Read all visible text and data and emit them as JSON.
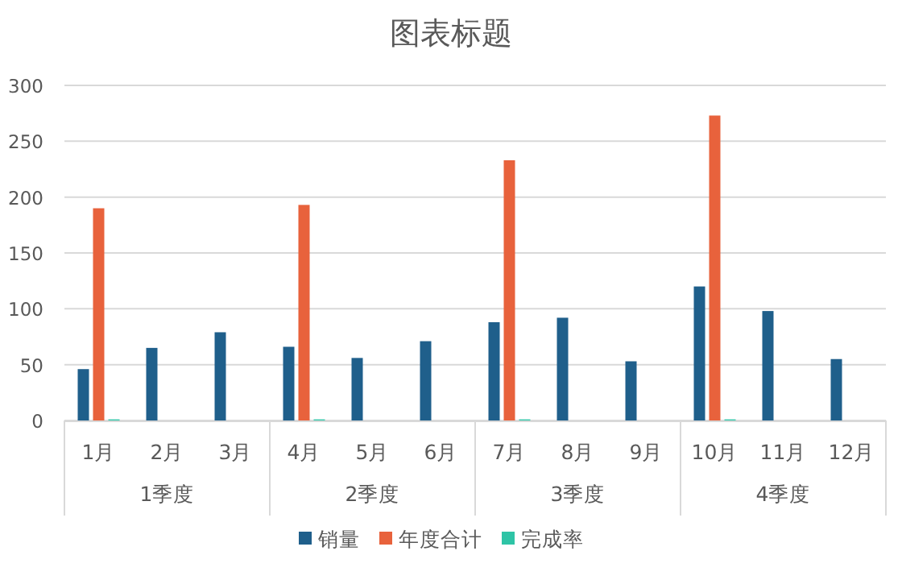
{
  "chart_data": {
    "type": "bar",
    "title": "图表标题",
    "categories": [
      "1月",
      "2月",
      "3月",
      "4月",
      "5月",
      "6月",
      "7月",
      "8月",
      "9月",
      "10月",
      "11月",
      "12月"
    ],
    "annotations": [
      "1季度",
      "2季度",
      "3季度",
      "4季度"
    ],
    "series": [
      {
        "name": "销量",
        "color": "#1f5f8b",
        "values": [
          46,
          65,
          79,
          66,
          56,
          71,
          88,
          92,
          53,
          120,
          98,
          55
        ]
      },
      {
        "name": "年度合计",
        "color": "#e8623c",
        "values": [
          190,
          null,
          null,
          193,
          null,
          null,
          233,
          null,
          null,
          273,
          null,
          null
        ]
      },
      {
        "name": "完成率",
        "color": "#2ec4a6",
        "values": [
          1,
          null,
          null,
          1,
          null,
          null,
          1,
          null,
          null,
          1,
          null,
          null
        ]
      }
    ],
    "ylim": [
      0,
      300
    ],
    "yticks": [
      0,
      50,
      100,
      150,
      200,
      250,
      300
    ],
    "grid": "y",
    "legend": "bottom"
  }
}
